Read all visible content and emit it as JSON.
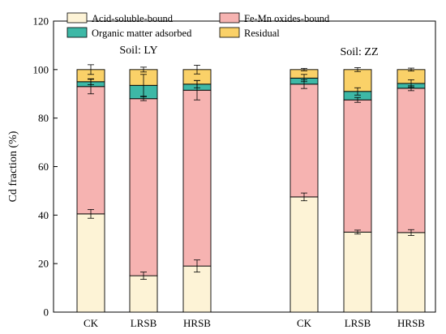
{
  "chart_data": {
    "type": "bar",
    "stacked": true,
    "ylabel": "Cd fraction (%)",
    "ylim": [
      0,
      120
    ],
    "yticks": [
      0,
      20,
      40,
      60,
      80,
      100,
      120
    ],
    "grid": false,
    "legend_position": "top-left",
    "groups": [
      {
        "label": "Soil: LY",
        "categories": [
          "CK",
          "LRSB",
          "HRSB"
        ]
      },
      {
        "label": "Soil: ZZ",
        "categories": [
          "CK",
          "LRSB",
          "HRSB"
        ]
      }
    ],
    "series": [
      {
        "name": "Acid-soluble-bound",
        "color": "#fdf3d6",
        "values": [
          40.5,
          15.0,
          19.0,
          47.5,
          33.0,
          32.8
        ],
        "errors": [
          1.8,
          1.5,
          2.5,
          1.6,
          0.8,
          1.2
        ]
      },
      {
        "name": "Fe-Mn oxides-bound",
        "color": "#f6b3b1",
        "values": [
          52.5,
          73.0,
          72.5,
          46.5,
          54.5,
          59.5
        ],
        "errors": [
          3.0,
          0.8,
          4.0,
          1.8,
          1.0,
          1.0
        ]
      },
      {
        "name": "Organic matter adsorbed",
        "color": "#3db8a6",
        "values": [
          2.0,
          5.5,
          2.5,
          2.5,
          3.5,
          2.0
        ],
        "errors": [
          1.2,
          4.5,
          1.5,
          1.5,
          1.5,
          1.5
        ]
      },
      {
        "name": "Residual",
        "color": "#fad168",
        "values": [
          5.0,
          6.5,
          6.0,
          3.5,
          9.0,
          5.7
        ],
        "errors": [
          2.0,
          1.0,
          1.8,
          0.5,
          0.8,
          0.6
        ]
      }
    ]
  }
}
